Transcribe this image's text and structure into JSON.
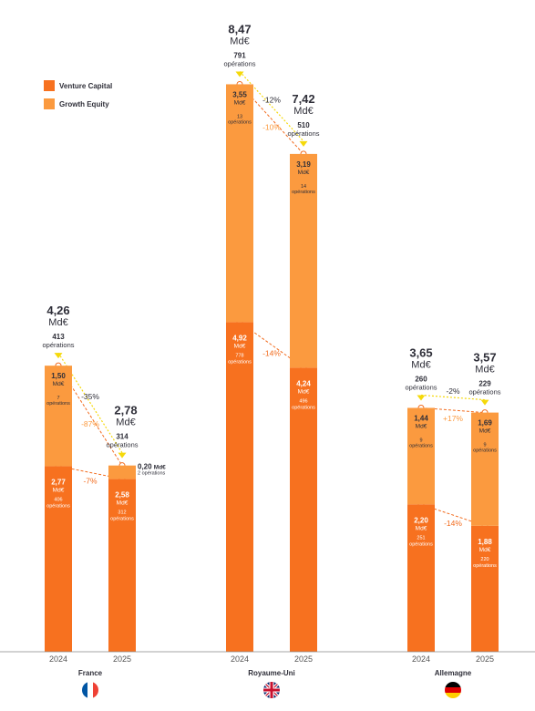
{
  "chart_data": {
    "type": "bar",
    "stacked": true,
    "legend": [
      {
        "name": "Venture Capital",
        "color": "#f7711f"
      },
      {
        "name": "Growth Equity",
        "color": "#fb9a3f"
      }
    ],
    "groups": [
      {
        "country": "France",
        "flag": "france-flag",
        "bars": [
          {
            "year": "2024",
            "vc": 2.77,
            "ge": 1.5,
            "vc_label": "2,77",
            "vc_unit": "Md€",
            "vc_deals": "406",
            "vc_deals_unit": "opérations",
            "ge_label": "1,50",
            "ge_unit": "Md€",
            "ge_deals": "7",
            "ge_deals_unit": "opérations",
            "total_label": "4,26",
            "total_unit": "Md€",
            "deals_total": "413",
            "deals_unit": "opérations"
          },
          {
            "year": "2025",
            "vc": 2.58,
            "ge": 0.2,
            "vc_label": "2,58",
            "vc_unit": "Md€",
            "vc_deals": "312",
            "vc_deals_unit": "opérations",
            "ge_label": "0,20",
            "ge_unit": "Md€",
            "ge_deals": "2",
            "ge_deals_unit": "opérations",
            "total_label": "2,78",
            "total_unit": "Md€",
            "deals_total": "314",
            "deals_unit": "opérations"
          }
        ],
        "total_change": "-35%",
        "vc_change": "-7%",
        "ge_change": "-87%"
      },
      {
        "country": "Royaume-Uni",
        "flag": "uk-flag",
        "bars": [
          {
            "year": "2024",
            "vc": 4.92,
            "ge": 3.55,
            "vc_label": "4,92",
            "vc_unit": "Md€",
            "vc_deals": "778",
            "vc_deals_unit": "opérations",
            "ge_label": "3,55",
            "ge_unit": "Md€",
            "ge_deals": "13",
            "ge_deals_unit": "opérations",
            "total_label": "8,47",
            "total_unit": "Md€",
            "deals_total": "791",
            "deals_unit": "opérations"
          },
          {
            "year": "2025",
            "vc": 4.24,
            "ge": 3.19,
            "vc_label": "4,24",
            "vc_unit": "Md€",
            "vc_deals": "496",
            "vc_deals_unit": "opérations",
            "ge_label": "3,19",
            "ge_unit": "Md€",
            "ge_deals": "14",
            "ge_deals_unit": "opérations",
            "total_label": "7,42",
            "total_unit": "Md€",
            "deals_total": "510",
            "deals_unit": "opérations"
          }
        ],
        "total_change": "-12%",
        "vc_change": "-14%",
        "ge_change": "-10%"
      },
      {
        "country": "Allemagne",
        "flag": "germany-flag",
        "bars": [
          {
            "year": "2024",
            "vc": 2.2,
            "ge": 1.44,
            "vc_label": "2,20",
            "vc_unit": "Md€",
            "vc_deals": "251",
            "vc_deals_unit": "opérations",
            "ge_label": "1,44",
            "ge_unit": "Md€",
            "ge_deals": "9",
            "ge_deals_unit": "opérations",
            "total_label": "3,65",
            "total_unit": "Md€",
            "deals_total": "260",
            "deals_unit": "opérations"
          },
          {
            "year": "2025",
            "vc": 1.88,
            "ge": 1.69,
            "vc_label": "1,88",
            "vc_unit": "Md€",
            "vc_deals": "220",
            "vc_deals_unit": "opérations",
            "ge_label": "1,69",
            "ge_unit": "Md€",
            "ge_deals": "9",
            "ge_deals_unit": "opérations",
            "total_label": "3,57",
            "total_unit": "Md€",
            "deals_total": "229",
            "deals_unit": "opérations"
          }
        ],
        "total_change": "-2%",
        "vc_change": "-14%",
        "ge_change": "+17%"
      }
    ],
    "colors": {
      "vc": "#f7711f",
      "ge": "#fb9a3f",
      "dashed_vc": "#f26b1d",
      "dashed_total": "#f5d90a",
      "text_dark": "#2e2e38",
      "pct_vc": "#f26b1d",
      "pct_ge": "#fb9a3f",
      "pct_total": "#2e2e38"
    }
  }
}
